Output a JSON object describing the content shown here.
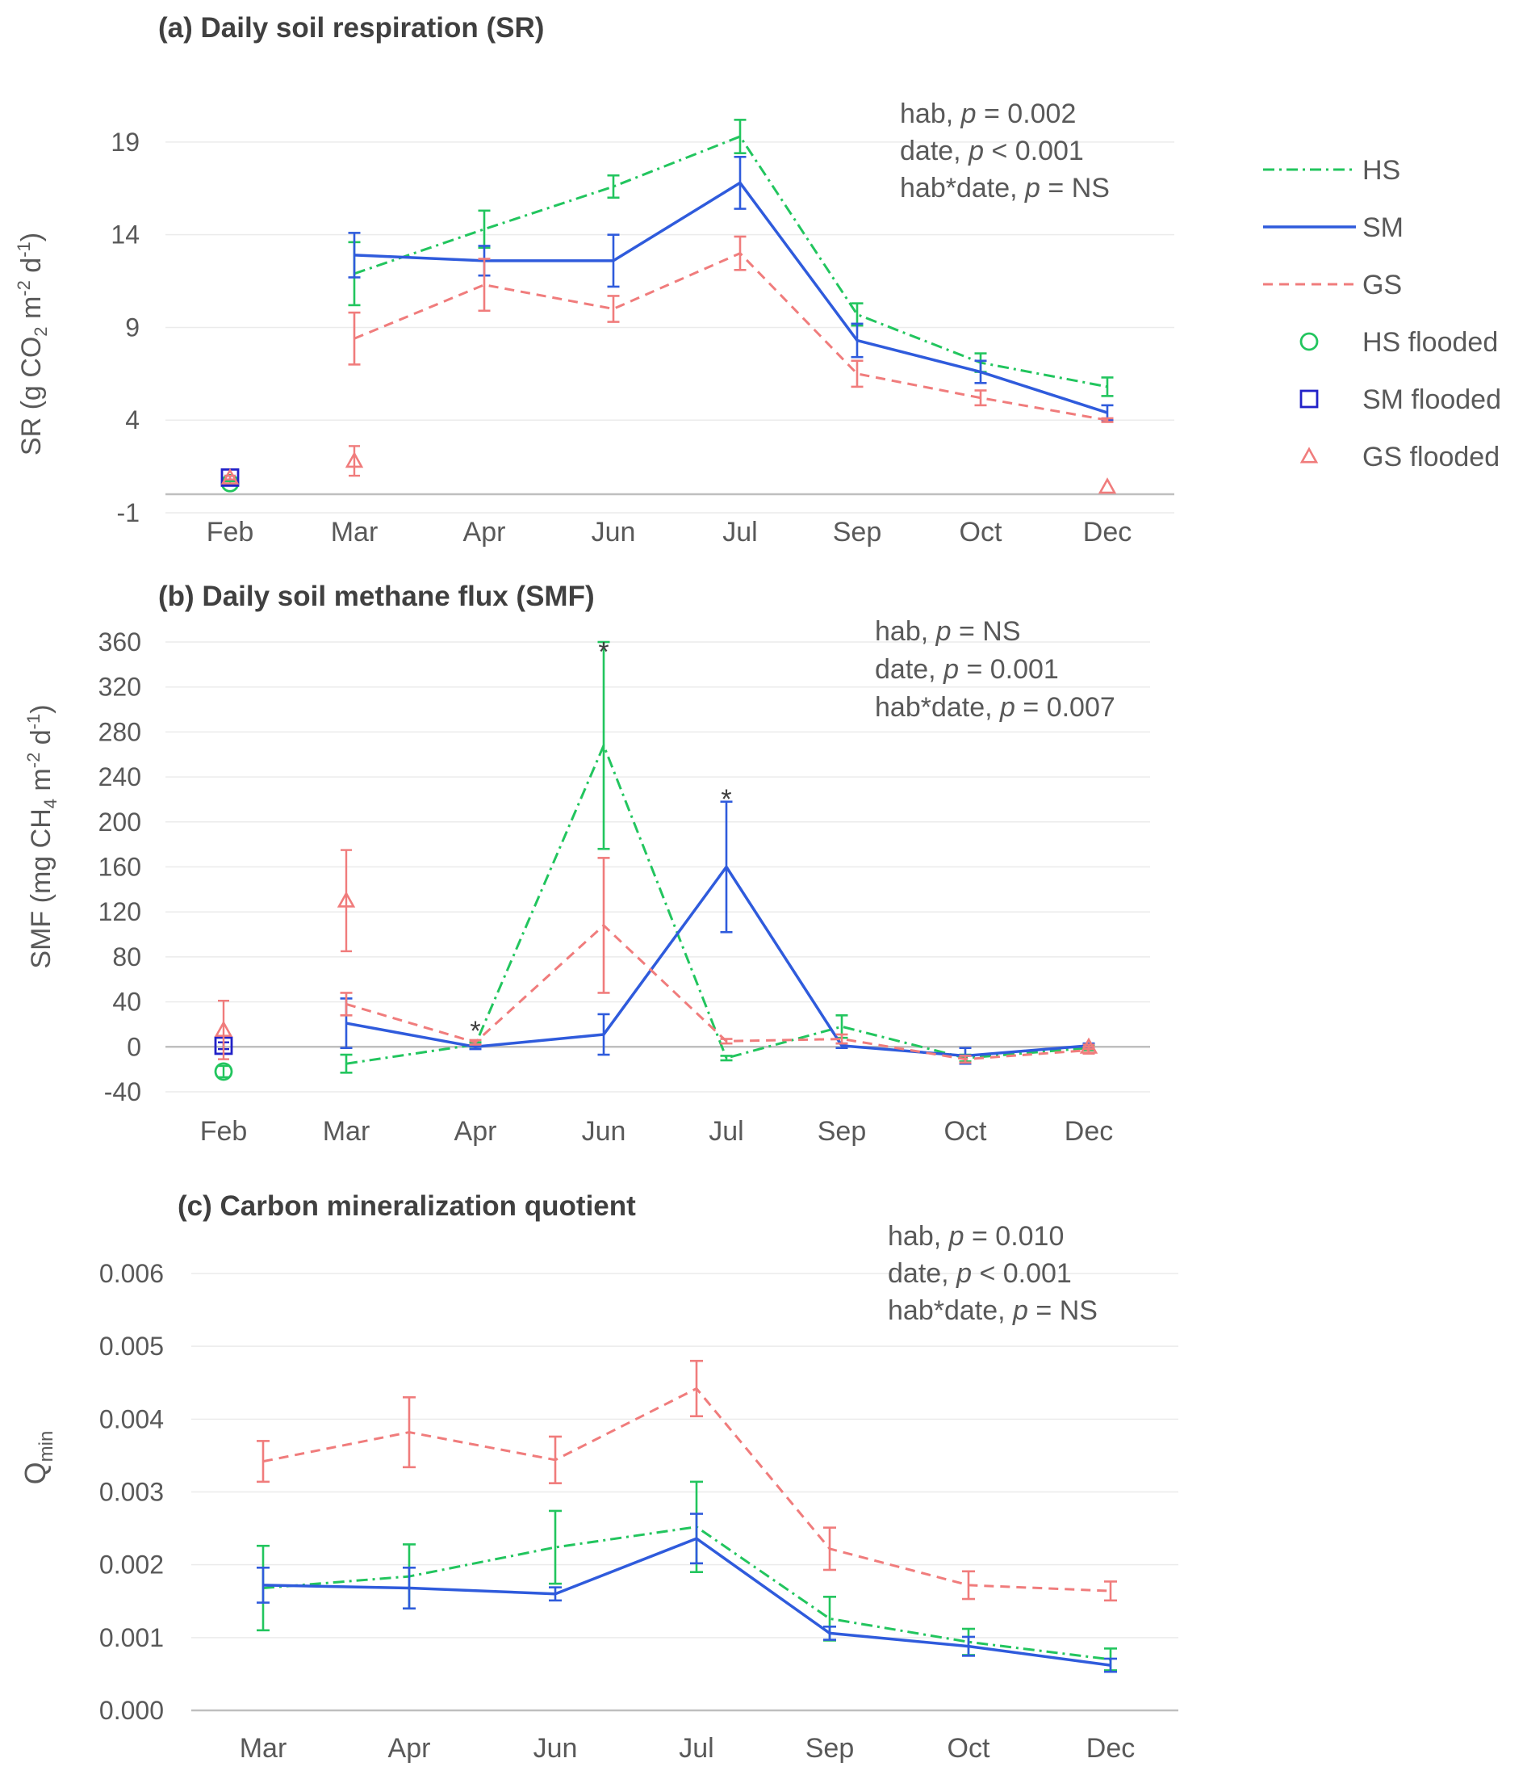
{
  "legend": {
    "items": [
      {
        "label": "HS",
        "kind": "line",
        "series": "HS"
      },
      {
        "label": "SM",
        "kind": "line",
        "series": "SM"
      },
      {
        "label": "GS",
        "kind": "line",
        "series": "GS"
      },
      {
        "label": "HS flooded",
        "kind": "marker",
        "marker": "circle",
        "series": "HS"
      },
      {
        "label": "SM flooded",
        "kind": "marker",
        "marker": "square",
        "series": "SMf"
      },
      {
        "label": "GS flooded",
        "kind": "marker",
        "marker": "triangle",
        "series": "GS"
      }
    ]
  },
  "colors": {
    "HS": "#22c55e",
    "SM": "#2f5bdc",
    "SMf": "#2222c8",
    "GS": "#f07c7c",
    "axis": "#bfbfbf",
    "grid": "#ebebeb",
    "text": "#595959",
    "title": "#404040"
  },
  "chart_data": [
    {
      "type": "line",
      "title": "(a) Daily soil respiration (SR)",
      "ylabel": "SR (g CO2 m-2 d-1)",
      "ylabel_parts": {
        "a": "SR (g CO",
        "s1": "2",
        "b": " m",
        "s2": "-2",
        "c": " d",
        "s3": "-1",
        "d": ")"
      },
      "categories": [
        "Feb",
        "Mar",
        "Apr",
        "Jun",
        "Jul",
        "Sep",
        "Oct",
        "Dec"
      ],
      "ylim": [
        -1,
        21
      ],
      "yticks": [
        -1,
        4,
        9,
        14,
        19
      ],
      "ytick_labels": [
        "-1",
        "4",
        "9",
        "14",
        "19"
      ],
      "grid": true,
      "legend_position": "right",
      "stats": [
        {
          "term": "hab, ",
          "p": "p",
          "val": " = 0.002"
        },
        {
          "term": "date, ",
          "p": "p",
          "val": " < 0.001"
        },
        {
          "term": "hab*date, ",
          "p": "p",
          "val": " = NS"
        }
      ],
      "series": [
        {
          "name": "HS",
          "values": [
            null,
            11.9,
            14.3,
            16.6,
            19.3,
            9.7,
            7.1,
            5.8
          ],
          "errors": [
            null,
            1.7,
            1.0,
            0.6,
            0.9,
            0.6,
            0.5,
            0.5
          ]
        },
        {
          "name": "SM",
          "values": [
            null,
            12.9,
            12.6,
            12.6,
            16.8,
            8.3,
            6.6,
            4.4
          ],
          "errors": [
            null,
            1.2,
            0.8,
            1.4,
            1.4,
            0.9,
            0.6,
            0.4
          ]
        },
        {
          "name": "GS",
          "values": [
            null,
            8.4,
            11.3,
            10.0,
            13.0,
            6.5,
            5.2,
            4.0
          ],
          "errors": [
            null,
            1.4,
            1.4,
            0.7,
            0.9,
            0.7,
            0.4,
            0.1
          ]
        }
      ],
      "flooded": [
        {
          "name": "HS",
          "marker": "circle",
          "points": [
            {
              "i": 0,
              "v": 0.6,
              "e": 0.1
            }
          ]
        },
        {
          "name": "SMf",
          "marker": "square",
          "points": [
            {
              "i": 0,
              "v": 0.9,
              "e": 0.1
            }
          ]
        },
        {
          "name": "GS",
          "marker": "triangle",
          "points": [
            {
              "i": 0,
              "v": 0.9,
              "e": 0.1
            },
            {
              "i": 1,
              "v": 1.8,
              "e": 0.8
            },
            {
              "i": 7,
              "v": 0.4,
              "e": 0.0
            }
          ]
        }
      ],
      "annotations": []
    },
    {
      "type": "line",
      "title": "(b) Daily soil methane flux (SMF)",
      "ylabel": "SMF (mg CH4 m-2 d-1)",
      "ylabel_parts": {
        "a": "SMF (mg CH",
        "s1": "4",
        "b": " m",
        "s2": "-2",
        "c": " d",
        "s3": "-1",
        "d": ")"
      },
      "categories": [
        "Feb",
        "Mar",
        "Apr",
        "Jun",
        "Jul",
        "Sep",
        "Oct",
        "Dec"
      ],
      "ylim": [
        -40,
        360
      ],
      "yticks": [
        -40,
        0,
        40,
        80,
        120,
        160,
        200,
        240,
        280,
        320,
        360
      ],
      "ytick_labels": [
        "-40",
        "0",
        "40",
        "80",
        "120",
        "160",
        "200",
        "240",
        "280",
        "320",
        "360"
      ],
      "grid": true,
      "stats": [
        {
          "term": "hab, ",
          "p": "p",
          "val": " = NS"
        },
        {
          "term": "date, ",
          "p": "p",
          "val": " = 0.001"
        },
        {
          "term": "hab*date, ",
          "p": "p",
          "val": " = 0.007"
        }
      ],
      "series": [
        {
          "name": "HS",
          "values": [
            null,
            -15,
            2,
            268,
            -10,
            18,
            -10,
            -1
          ],
          "errors": [
            null,
            8,
            2,
            92,
            2,
            10,
            3,
            2
          ]
        },
        {
          "name": "SM",
          "values": [
            null,
            21,
            0,
            11,
            160,
            1,
            -8,
            1
          ],
          "errors": [
            null,
            22,
            2,
            18,
            58,
            2,
            7,
            2
          ]
        },
        {
          "name": "GS",
          "values": [
            null,
            38,
            4,
            108,
            5,
            7,
            -11,
            -3
          ],
          "errors": [
            null,
            10,
            2,
            60,
            2,
            4,
            3,
            3
          ]
        }
      ],
      "flooded": [
        {
          "name": "HS",
          "marker": "circle",
          "points": [
            {
              "i": 0,
              "v": -22,
              "e": 5
            }
          ]
        },
        {
          "name": "SMf",
          "marker": "square",
          "points": [
            {
              "i": 0,
              "v": 1,
              "e": 3
            }
          ]
        },
        {
          "name": "GS",
          "marker": "triangle",
          "points": [
            {
              "i": 0,
              "v": 15,
              "e": 26
            },
            {
              "i": 1,
              "v": 130,
              "e": 45
            },
            {
              "i": 7,
              "v": 0,
              "e": 2
            }
          ]
        }
      ],
      "annotations": [
        {
          "text": "*",
          "i": 2,
          "v": 16
        },
        {
          "text": "*",
          "i": 3,
          "v": 353
        },
        {
          "text": "*",
          "i": 4,
          "v": 222
        }
      ]
    },
    {
      "type": "line",
      "title": "(c) Carbon mineralization quotient",
      "ylabel": "Qmin",
      "ylabel_parts": {
        "a": "Q",
        "sub": "min"
      },
      "categories": [
        "Mar",
        "Apr",
        "Jun",
        "Jul",
        "Sep",
        "Oct",
        "Dec"
      ],
      "ylim": [
        0,
        0.006
      ],
      "yticks": [
        0,
        0.001,
        0.002,
        0.003,
        0.004,
        0.005,
        0.006
      ],
      "ytick_labels": [
        "0.000",
        "0.001",
        "0.002",
        "0.003",
        "0.004",
        "0.005",
        "0.006"
      ],
      "grid": true,
      "stats": [
        {
          "term": "hab, ",
          "p": "p",
          "val": " = 0.010"
        },
        {
          "term": "date, ",
          "p": "p",
          "val": " < 0.001"
        },
        {
          "term": "hab*date, ",
          "p": "p",
          "val": " = NS"
        }
      ],
      "series": [
        {
          "name": "HS",
          "values": [
            0.00168,
            0.00184,
            0.00224,
            0.00252,
            0.00126,
            0.00094,
            0.0007
          ],
          "errors": [
            0.00058,
            0.00044,
            0.0005,
            0.00062,
            0.0003,
            0.00018,
            0.00015
          ]
        },
        {
          "name": "SM",
          "values": [
            0.00172,
            0.00168,
            0.0016,
            0.00236,
            0.00106,
            0.00088,
            0.00062
          ],
          "errors": [
            0.00024,
            0.00028,
            9e-05,
            0.00034,
            9e-05,
            0.00013,
            9e-05
          ]
        },
        {
          "name": "GS",
          "values": [
            0.00342,
            0.00382,
            0.00344,
            0.00442,
            0.00222,
            0.00172,
            0.00164
          ],
          "errors": [
            0.00028,
            0.00048,
            0.00032,
            0.00038,
            0.00029,
            0.00019,
            0.00013
          ]
        }
      ],
      "flooded": [],
      "annotations": []
    }
  ]
}
